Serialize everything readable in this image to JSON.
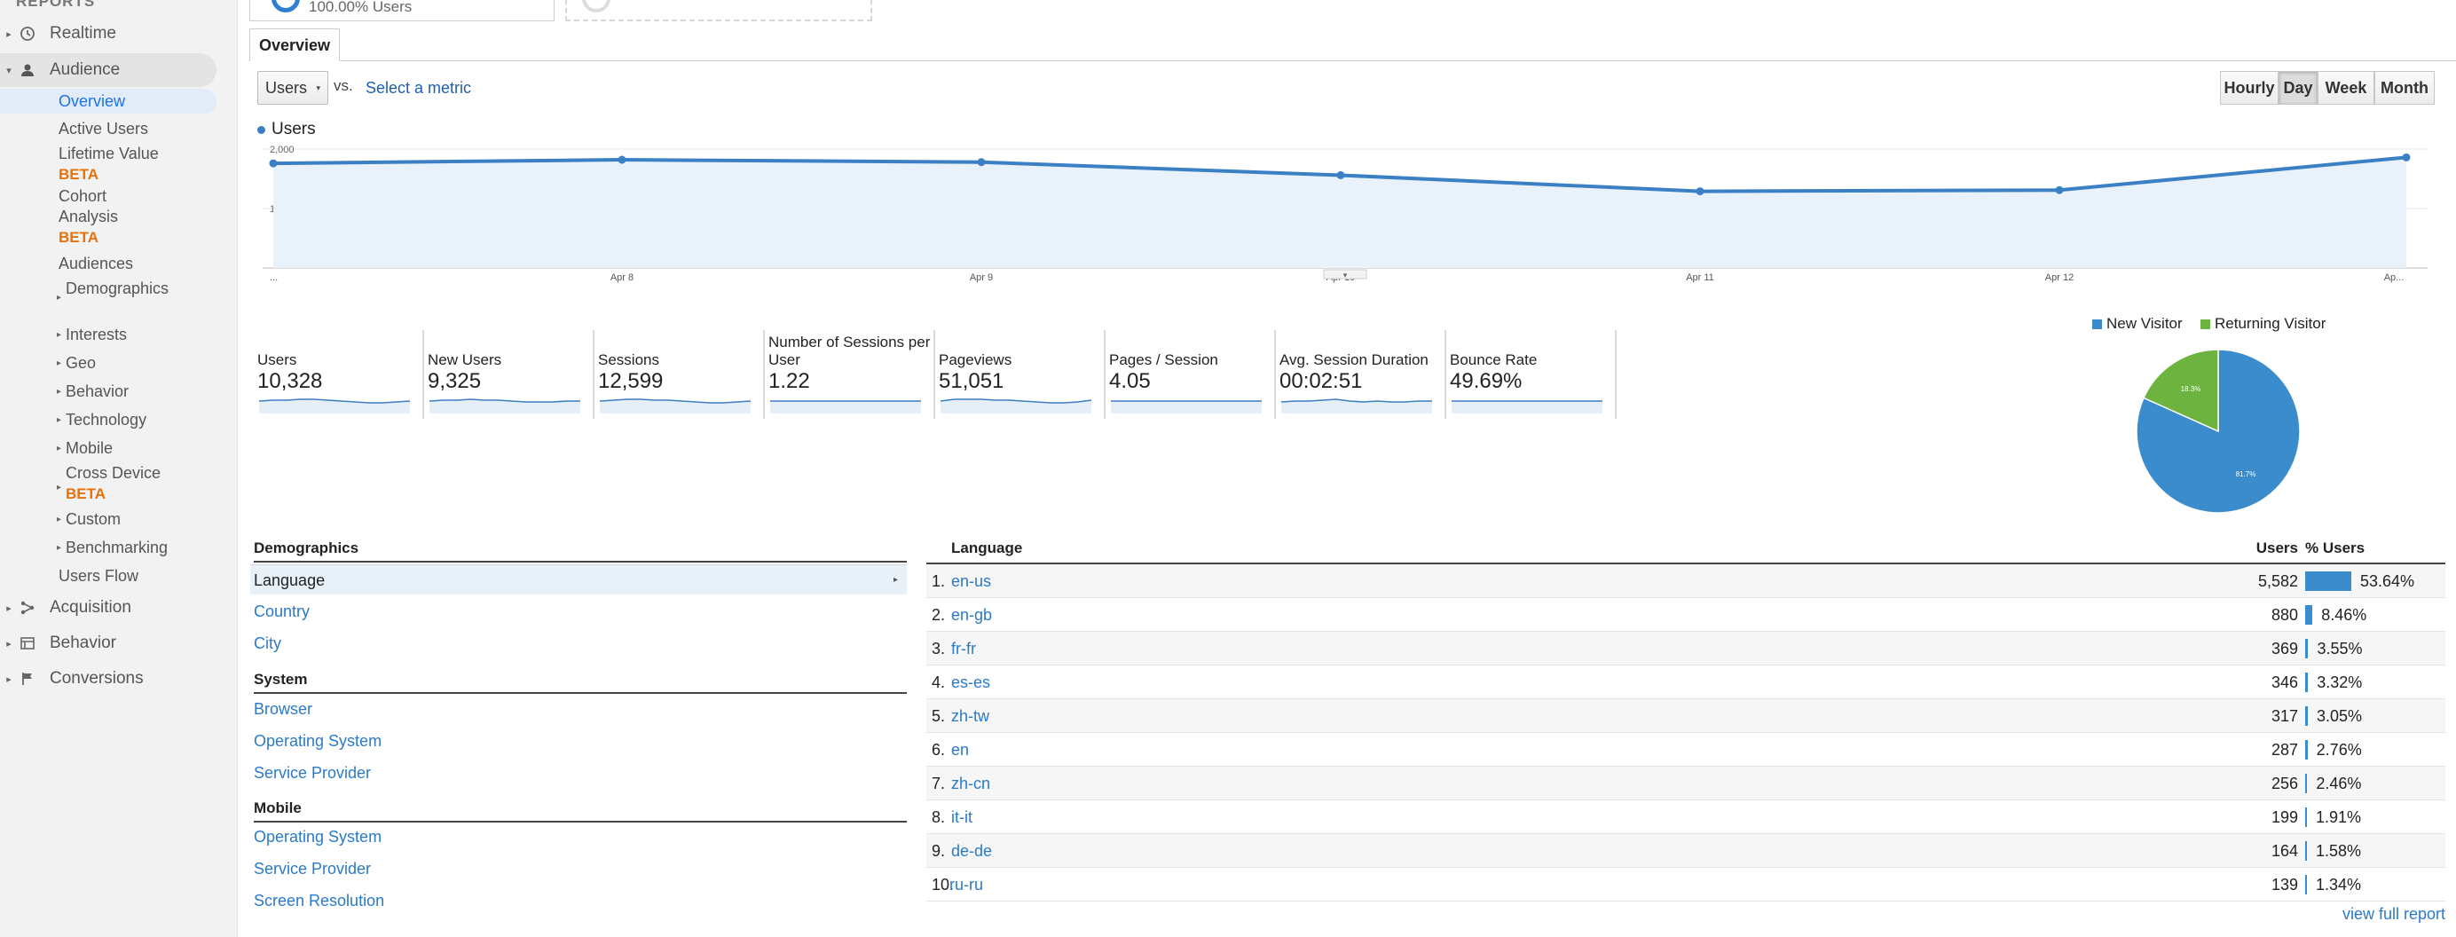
{
  "sidebar": {
    "header": "REPORTS",
    "realtime": "Realtime",
    "audience": "Audience",
    "audience_items": [
      {
        "label": "Overview"
      },
      {
        "label": "Active Users"
      },
      {
        "label": "Lifetime Value",
        "badge": "BETA"
      },
      {
        "label": "Cohort Analysis",
        "badge": "BETA"
      },
      {
        "label": "Audiences"
      },
      {
        "label": "Demographics"
      },
      {
        "label": "Interests"
      },
      {
        "label": "Geo"
      },
      {
        "label": "Behavior"
      },
      {
        "label": "Technology"
      },
      {
        "label": "Mobile"
      },
      {
        "label": "Cross Device",
        "badge": "BETA"
      },
      {
        "label": "Custom"
      },
      {
        "label": "Benchmarking"
      },
      {
        "label": "Users Flow"
      }
    ],
    "acquisition": "Acquisition",
    "behavior": "Behavior",
    "conversions": "Conversions"
  },
  "segment": {
    "text": "100.00% Users"
  },
  "tab": "Overview",
  "metric": {
    "selected": "Users",
    "vs": "vs.",
    "select_metric": "Select a metric"
  },
  "granularity": {
    "options": [
      "Hourly",
      "Day",
      "Week",
      "Month"
    ],
    "selected": "Day"
  },
  "legend": "Users",
  "chart_data": {
    "type": "line",
    "series": [
      {
        "name": "Users",
        "values": [
          1760,
          1820,
          1780,
          1560,
          1290,
          1310,
          1860
        ]
      }
    ],
    "x": [
      "...",
      "Apr 8",
      "Apr 9",
      "Apr 10",
      "Apr 11",
      "Apr 12",
      "Ap..."
    ],
    "yticks": [
      "2,000",
      "1,000"
    ],
    "ylim": [
      0,
      2000
    ],
    "color": "#3b7fc4",
    "fill": "#e9f1fa"
  },
  "scorecards": [
    {
      "label": "Users",
      "value": "10,328"
    },
    {
      "label": "New Users",
      "value": "9,325"
    },
    {
      "label": "Sessions",
      "value": "12,599"
    },
    {
      "label": "Number of Sessions per User",
      "value": "1.22"
    },
    {
      "label": "Pageviews",
      "value": "51,051"
    },
    {
      "label": "Pages / Session",
      "value": "4.05"
    },
    {
      "label": "Avg. Session Duration",
      "value": "00:02:51"
    },
    {
      "label": "Bounce Rate",
      "value": "49.69%"
    }
  ],
  "pie": {
    "legend": [
      {
        "label": "New Visitor",
        "color": "#3b8ccc"
      },
      {
        "label": "Returning Visitor",
        "color": "#6db33f"
      }
    ],
    "slices": [
      {
        "label": "81.7%",
        "value": 81.7
      },
      {
        "label": "18.3%",
        "value": 18.3
      }
    ]
  },
  "demographics": {
    "sections": [
      {
        "title": "Demographics",
        "items": [
          "Language",
          "Country",
          "City"
        ]
      },
      {
        "title": "System",
        "items": [
          "Browser",
          "Operating System",
          "Service Provider"
        ]
      },
      {
        "title": "Mobile",
        "items": [
          "Operating System",
          "Service Provider",
          "Screen Resolution"
        ]
      }
    ],
    "selected": "Language"
  },
  "language_table": {
    "headers": {
      "name": "Language",
      "users": "Users",
      "pct": "% Users"
    },
    "rows": [
      {
        "idx": "1.",
        "name": "en-us",
        "users": "5,582",
        "pct": "53.64%",
        "share": 53.64
      },
      {
        "idx": "2.",
        "name": "en-gb",
        "users": "880",
        "pct": "8.46%",
        "share": 8.46
      },
      {
        "idx": "3.",
        "name": "fr-fr",
        "users": "369",
        "pct": "3.55%",
        "share": 3.55
      },
      {
        "idx": "4.",
        "name": "es-es",
        "users": "346",
        "pct": "3.32%",
        "share": 3.32
      },
      {
        "idx": "5.",
        "name": "zh-tw",
        "users": "317",
        "pct": "3.05%",
        "share": 3.05
      },
      {
        "idx": "6.",
        "name": "en",
        "users": "287",
        "pct": "2.76%",
        "share": 2.76
      },
      {
        "idx": "7.",
        "name": "zh-cn",
        "users": "256",
        "pct": "2.46%",
        "share": 2.46
      },
      {
        "idx": "8.",
        "name": "it-it",
        "users": "199",
        "pct": "1.91%",
        "share": 1.91
      },
      {
        "idx": "9.",
        "name": "de-de",
        "users": "164",
        "pct": "1.58%",
        "share": 1.58
      },
      {
        "idx": "10.",
        "name": "ru-ru",
        "users": "139",
        "pct": "1.34%",
        "share": 1.34
      }
    ],
    "view_full": "view full report"
  }
}
